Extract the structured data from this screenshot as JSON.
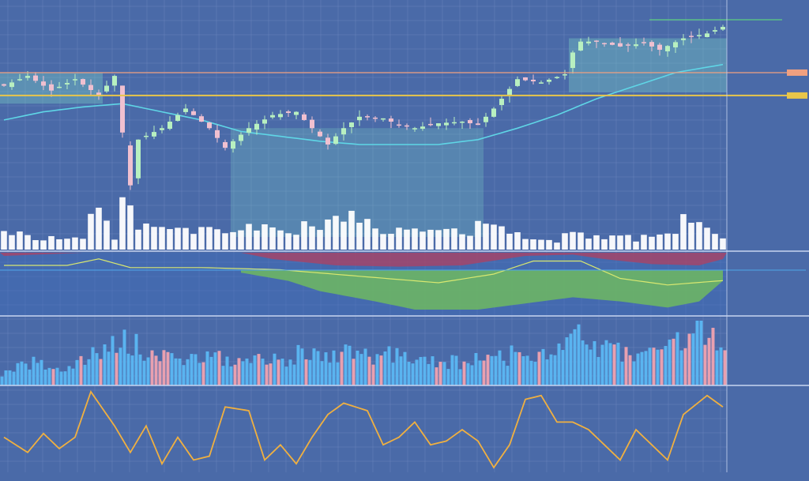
{
  "colors": {
    "background": "#4a6aa8",
    "grid": "#7d95c8",
    "axis_bg": "#4a6aa8",
    "bull_candle": "#b8f0c0",
    "bear_candle": "#f0c0d0",
    "volume": "#ffffff",
    "ma_line": "#5fd6e6",
    "orange_level": "#f0a080",
    "yellow_level": "#e8c64a",
    "green_level": "#5ccf80",
    "osc_line": "#f0b040",
    "hist_blue": "#5ab4f0",
    "hist_pink": "#e8a0b0",
    "cloud_red": "#b04060",
    "cloud_green": "#6fb860"
  },
  "chart_data": {
    "type": "candlestick",
    "panels": [
      {
        "name": "price",
        "y_labels": [
          "",
          "",
          "",
          "",
          "",
          "",
          "",
          "",
          "",
          "",
          "",
          "",
          "",
          "",
          "",
          "",
          ""
        ],
        "levels": [
          {
            "kind": "orange",
            "value": 0.74
          },
          {
            "kind": "yellow",
            "value": 0.6
          }
        ],
        "close_profile": [
          [
            0,
            0.66
          ],
          [
            3,
            0.72
          ],
          [
            6,
            0.63
          ],
          [
            9,
            0.7
          ],
          [
            12,
            0.6
          ],
          [
            14,
            0.72
          ],
          [
            15.5,
            0.2
          ],
          [
            16,
            0.05
          ],
          [
            17,
            0.33
          ],
          [
            20,
            0.4
          ],
          [
            23,
            0.52
          ],
          [
            26,
            0.4
          ],
          [
            28,
            0.28
          ],
          [
            31,
            0.4
          ],
          [
            34,
            0.48
          ],
          [
            37,
            0.5
          ],
          [
            39,
            0.4
          ],
          [
            41,
            0.3
          ],
          [
            43,
            0.4
          ],
          [
            45,
            0.47
          ],
          [
            48,
            0.46
          ],
          [
            50,
            0.42
          ],
          [
            52,
            0.4
          ],
          [
            55,
            0.43
          ],
          [
            58,
            0.44
          ],
          [
            60,
            0.42
          ],
          [
            62,
            0.52
          ],
          [
            65,
            0.7
          ],
          [
            68,
            0.68
          ],
          [
            71,
            0.73
          ],
          [
            72.5,
            0.93
          ],
          [
            75,
            0.93
          ],
          [
            78,
            0.9
          ],
          [
            81,
            0.92
          ],
          [
            83,
            0.88
          ],
          [
            86,
            0.95
          ],
          [
            89,
            0.98
          ],
          [
            91,
            1.02
          ]
        ],
        "ma_profile": [
          [
            0,
            0.45
          ],
          [
            5,
            0.5
          ],
          [
            10,
            0.53
          ],
          [
            15,
            0.55
          ],
          [
            20,
            0.5
          ],
          [
            25,
            0.45
          ],
          [
            30,
            0.38
          ],
          [
            35,
            0.35
          ],
          [
            40,
            0.32
          ],
          [
            45,
            0.3
          ],
          [
            50,
            0.3
          ],
          [
            55,
            0.3
          ],
          [
            60,
            0.33
          ],
          [
            65,
            0.4
          ],
          [
            70,
            0.48
          ],
          [
            75,
            0.58
          ],
          [
            80,
            0.66
          ],
          [
            85,
            0.74
          ],
          [
            91,
            0.79
          ]
        ],
        "volume_profile": [
          [
            0,
            0.35
          ],
          [
            5,
            0.25
          ],
          [
            10,
            0.22
          ],
          [
            11,
            0.8
          ],
          [
            14,
            0.3
          ],
          [
            15,
            1.0
          ],
          [
            17,
            0.55
          ],
          [
            20,
            0.35
          ],
          [
            25,
            0.35
          ],
          [
            30,
            0.4
          ],
          [
            35,
            0.42
          ],
          [
            40,
            0.45
          ],
          [
            42,
            0.8
          ],
          [
            45,
            0.5
          ],
          [
            50,
            0.35
          ],
          [
            55,
            0.4
          ],
          [
            58,
            0.3
          ],
          [
            60,
            0.5
          ],
          [
            65,
            0.3
          ],
          [
            70,
            0.2
          ],
          [
            72,
            0.4
          ],
          [
            75,
            0.25
          ],
          [
            80,
            0.22
          ],
          [
            85,
            0.4
          ],
          [
            86,
            0.7
          ],
          [
            91,
            0.25
          ]
        ]
      },
      {
        "name": "cloud",
        "y_labels": [
          "",
          "",
          ""
        ],
        "red_profile": [
          [
            0,
            0.05
          ],
          [
            10,
            0.0
          ],
          [
            30,
            0.0
          ],
          [
            34,
            0.1
          ],
          [
            42,
            0.2
          ],
          [
            50,
            0.22
          ],
          [
            58,
            0.2
          ],
          [
            66,
            0.05
          ],
          [
            72,
            0.03
          ],
          [
            76,
            0.1
          ],
          [
            82,
            0.18
          ],
          [
            88,
            0.2
          ],
          [
            91,
            0.1
          ]
        ],
        "green_profile": [
          [
            30,
            0.1
          ],
          [
            36,
            0.3
          ],
          [
            40,
            0.55
          ],
          [
            47,
            0.8
          ],
          [
            52,
            1.0
          ],
          [
            60,
            1.0
          ],
          [
            66,
            0.85
          ],
          [
            72,
            0.7
          ],
          [
            78,
            0.8
          ],
          [
            84,
            0.95
          ],
          [
            88,
            0.8
          ],
          [
            91,
            0.3
          ]
        ],
        "line_profile": [
          [
            0,
            0.2
          ],
          [
            8,
            0.2
          ],
          [
            12,
            0.05
          ],
          [
            16,
            0.25
          ],
          [
            25,
            0.25
          ],
          [
            35,
            0.3
          ],
          [
            45,
            0.45
          ],
          [
            55,
            0.6
          ],
          [
            62,
            0.4
          ],
          [
            67,
            0.1
          ],
          [
            73,
            0.1
          ],
          [
            78,
            0.5
          ],
          [
            84,
            0.65
          ],
          [
            91,
            0.55
          ]
        ]
      },
      {
        "name": "histogram",
        "y_labels": [
          "",
          "",
          "",
          "",
          ""
        ],
        "profile": [
          [
            0,
            0.2
          ],
          [
            4,
            0.4
          ],
          [
            8,
            0.3
          ],
          [
            12,
            0.55
          ],
          [
            15,
            0.9
          ],
          [
            18,
            0.6
          ],
          [
            22,
            0.45
          ],
          [
            26,
            0.55
          ],
          [
            30,
            0.4
          ],
          [
            34,
            0.5
          ],
          [
            38,
            0.55
          ],
          [
            42,
            0.6
          ],
          [
            46,
            0.5
          ],
          [
            50,
            0.55
          ],
          [
            54,
            0.45
          ],
          [
            58,
            0.4
          ],
          [
            62,
            0.5
          ],
          [
            66,
            0.6
          ],
          [
            70,
            0.55
          ],
          [
            72,
            0.9
          ],
          [
            76,
            0.7
          ],
          [
            80,
            0.55
          ],
          [
            84,
            0.65
          ],
          [
            88,
            0.95
          ],
          [
            91,
            0.85
          ]
        ]
      },
      {
        "name": "oscillator",
        "y_labels": [
          "",
          "",
          "",
          "",
          "",
          ""
        ],
        "profile": [
          [
            0,
            0.4
          ],
          [
            3,
            0.2
          ],
          [
            5,
            0.45
          ],
          [
            7,
            0.25
          ],
          [
            9,
            0.4
          ],
          [
            11,
            1.0
          ],
          [
            14,
            0.55
          ],
          [
            16,
            0.2
          ],
          [
            18,
            0.55
          ],
          [
            20,
            0.05
          ],
          [
            22,
            0.4
          ],
          [
            24,
            0.1
          ],
          [
            26,
            0.15
          ],
          [
            28,
            0.8
          ],
          [
            31,
            0.75
          ],
          [
            33,
            0.1
          ],
          [
            35,
            0.3
          ],
          [
            37,
            0.05
          ],
          [
            39,
            0.4
          ],
          [
            41,
            0.7
          ],
          [
            43,
            0.85
          ],
          [
            46,
            0.75
          ],
          [
            48,
            0.3
          ],
          [
            50,
            0.4
          ],
          [
            52,
            0.6
          ],
          [
            54,
            0.3
          ],
          [
            56,
            0.35
          ],
          [
            58,
            0.5
          ],
          [
            60,
            0.35
          ],
          [
            62,
            0.0
          ],
          [
            64,
            0.3
          ],
          [
            66,
            0.9
          ],
          [
            68,
            0.95
          ],
          [
            70,
            0.6
          ],
          [
            72,
            0.6
          ],
          [
            74,
            0.5
          ],
          [
            76,
            0.3
          ],
          [
            78,
            0.1
          ],
          [
            80,
            0.5
          ],
          [
            82,
            0.3
          ],
          [
            84,
            0.1
          ],
          [
            86,
            0.7
          ],
          [
            89,
            0.95
          ],
          [
            91,
            0.8
          ]
        ]
      }
    ],
    "x_labels": [
      "",
      "",
      "",
      "",
      "",
      "",
      "",
      "",
      "",
      "",
      "",
      "",
      "",
      "",
      "",
      "",
      "",
      "",
      "",
      "",
      "",
      "",
      ""
    ],
    "bar_count": 92
  }
}
